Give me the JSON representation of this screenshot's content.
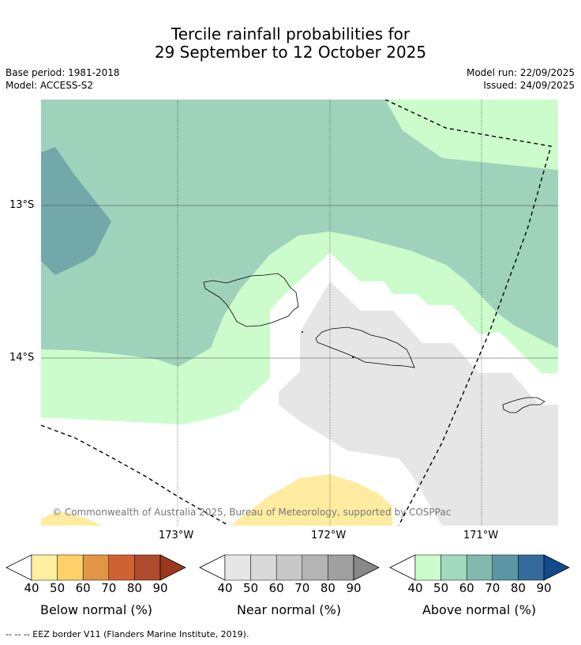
{
  "title": {
    "line1": "Tercile rainfall probabilities for",
    "line2": "29 September to 12 October 2025"
  },
  "meta": {
    "base_period": "Base period: 1981-2018",
    "model": "Model: ACCESS-S2",
    "model_run": "Model run: 22/09/2025",
    "issued": "Issued: 24/09/2025"
  },
  "map": {
    "lat_labels": [
      "13°S",
      "14°S"
    ],
    "lon_labels": [
      "173°W",
      "172°W",
      "171°W"
    ],
    "copyright": "© Commonwealth of Australia 2025, Bureau of Meteorology, supported by COSPPac"
  },
  "legends": [
    {
      "title": "Below normal (%)",
      "ticks": [
        "40",
        "50",
        "60",
        "70",
        "80",
        "90"
      ],
      "colors": [
        "#ffffff",
        "#fff0a0",
        "#fdd06a",
        "#e29547",
        "#cf6233",
        "#b04a2c",
        "#99381f"
      ]
    },
    {
      "title": "Near normal (%)",
      "ticks": [
        "40",
        "50",
        "60",
        "70",
        "80",
        "90"
      ],
      "colors": [
        "#ffffff",
        "#e6e6e6",
        "#d9d9d9",
        "#c8c8c8",
        "#b4b4b4",
        "#a0a0a0",
        "#888888"
      ]
    },
    {
      "title": "Above normal (%)",
      "ticks": [
        "40",
        "50",
        "60",
        "70",
        "80",
        "90"
      ],
      "colors": [
        "#ffffff",
        "#ccfccc",
        "#a2d8bd",
        "#83b8ae",
        "#5c96a4",
        "#326b9c",
        "#124a8c"
      ]
    }
  ],
  "footnote": "--  --  -- EEZ border V11 (Flanders Marine Institute, 2019).",
  "region_colors": {
    "above50": "#ccfccc",
    "above60": "#9ed2bb",
    "above70": "#72a8aa",
    "near50": "#e6e6e6",
    "below50": "#ffeca0"
  }
}
